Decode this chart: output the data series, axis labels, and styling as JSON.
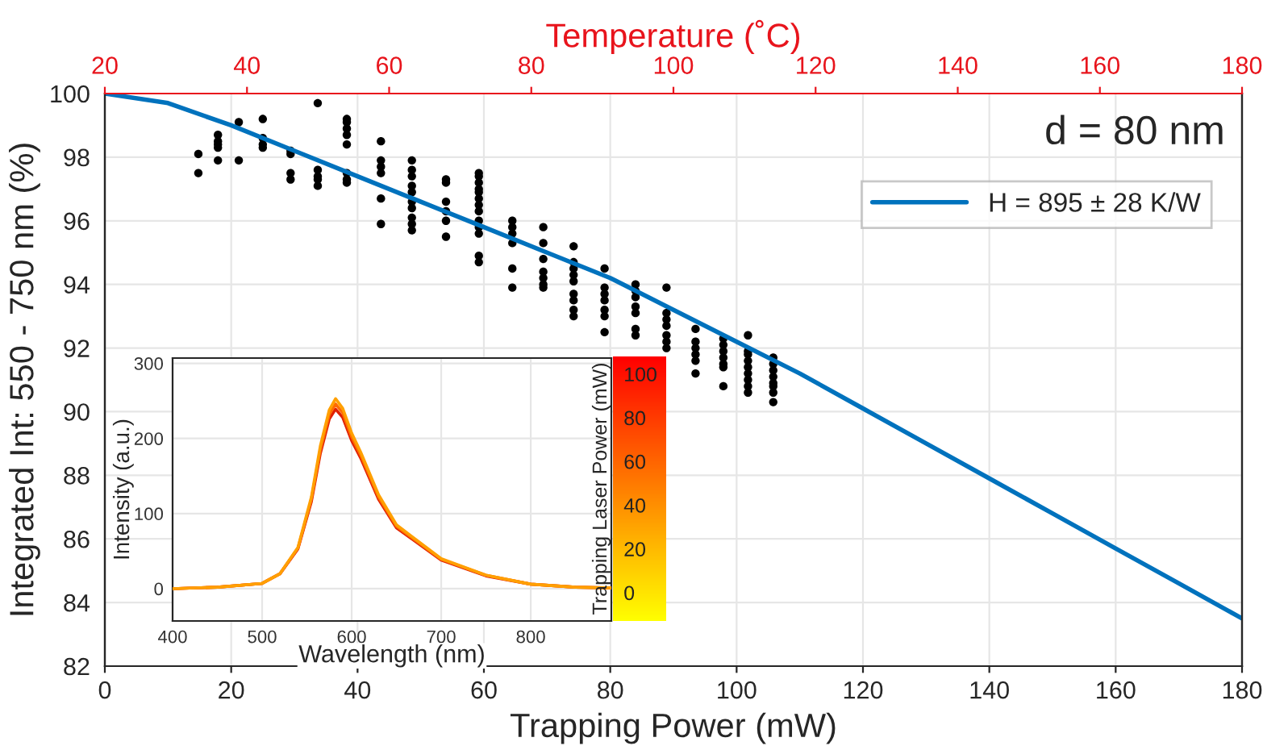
{
  "chart_data": [
    {
      "type": "scatter",
      "xlabel": "Trapping Power (mW)",
      "ylabel": "Integrated Int: 550 - 750 nm (%)",
      "x2label": "Temperature (˚C)",
      "xlim": [
        0,
        180
      ],
      "xticks": [
        0,
        20,
        40,
        60,
        80,
        100,
        120,
        140,
        160,
        180
      ],
      "ylim": [
        82,
        100
      ],
      "yticks": [
        82,
        84,
        86,
        88,
        90,
        92,
        94,
        96,
        98,
        100
      ],
      "x2lim": [
        20,
        180
      ],
      "x2ticks": [
        20,
        40,
        60,
        80,
        100,
        120,
        140,
        160,
        180
      ],
      "grid": true,
      "legend": "top right",
      "annotations": [
        "d = 80 nm"
      ],
      "series": [
        {
          "type": "scatter",
          "color": "#000000",
          "marker": "circle",
          "x": [
            14.8,
            14.8,
            17.9,
            17.9,
            17.9,
            17.9,
            17.9,
            21.2,
            21.2,
            25.0,
            25.0,
            25.0,
            25.0,
            29.4,
            29.4,
            29.4,
            29.4,
            33.7,
            33.7,
            33.7,
            33.7,
            33.7,
            38.3,
            38.3,
            38.3,
            38.3,
            38.3,
            38.3,
            38.3,
            38.3,
            43.7,
            43.7,
            43.7,
            43.7,
            43.7,
            43.7,
            48.6,
            48.6,
            48.6,
            48.6,
            48.6,
            48.6,
            48.6,
            48.6,
            48.6,
            48.6,
            54.0,
            54.0,
            54.0,
            54.0,
            54.0,
            54.0,
            59.2,
            59.2,
            59.2,
            59.2,
            59.2,
            59.2,
            59.2,
            59.2,
            59.2,
            59.2,
            59.2,
            59.2,
            59.2,
            64.5,
            64.5,
            64.5,
            64.5,
            64.5,
            64.5,
            69.4,
            69.4,
            69.4,
            69.4,
            69.4,
            69.4,
            69.4,
            74.2,
            74.2,
            74.2,
            74.2,
            74.2,
            74.2,
            74.2,
            74.2,
            74.2,
            79.1,
            79.1,
            79.1,
            79.1,
            79.1,
            79.1,
            79.1,
            84.0,
            84.0,
            84.0,
            84.0,
            84.0,
            84.0,
            84.0,
            88.9,
            88.9,
            88.9,
            88.9,
            88.9,
            88.9,
            88.9,
            93.5,
            93.5,
            93.5,
            93.5,
            93.5,
            93.5,
            97.9,
            97.9,
            97.9,
            97.9,
            97.9,
            97.9,
            97.9,
            101.8,
            101.8,
            101.8,
            101.8,
            101.8,
            101.8,
            101.8,
            101.8,
            101.8,
            105.8,
            105.8,
            105.8,
            105.8,
            105.8,
            105.8,
            105.8,
            105.8
          ],
          "values": [
            98.1,
            97.5,
            98.7,
            98.5,
            98.4,
            98.3,
            97.9,
            99.1,
            97.9,
            99.2,
            98.6,
            98.4,
            98.3,
            98.2,
            98.1,
            97.5,
            97.3,
            99.7,
            97.6,
            97.4,
            97.3,
            97.1,
            99.2,
            99.1,
            98.9,
            98.7,
            98.4,
            97.5,
            97.3,
            97.2,
            98.5,
            97.9,
            97.7,
            97.5,
            96.7,
            95.9,
            97.9,
            97.6,
            97.4,
            97.1,
            96.9,
            96.6,
            96.4,
            96.1,
            95.9,
            95.7,
            97.3,
            97.2,
            96.6,
            96.3,
            96.0,
            95.5,
            97.5,
            97.4,
            97.2,
            97.0,
            96.9,
            96.7,
            96.5,
            96.3,
            96.0,
            95.8,
            95.6,
            94.9,
            94.7,
            96.0,
            95.8,
            95.6,
            95.3,
            94.5,
            93.9,
            95.8,
            95.3,
            94.8,
            94.4,
            94.2,
            94.0,
            93.9,
            95.2,
            94.7,
            94.5,
            94.3,
            94.1,
            93.7,
            93.5,
            93.2,
            93.0,
            94.5,
            93.9,
            93.7,
            93.5,
            93.2,
            93.0,
            92.5,
            94.0,
            93.8,
            93.6,
            93.3,
            93.1,
            92.6,
            92.4,
            93.9,
            93.1,
            92.9,
            92.7,
            92.4,
            92.2,
            92.0,
            92.6,
            92.2,
            92.0,
            91.8,
            91.6,
            91.2,
            92.3,
            92.1,
            91.9,
            91.7,
            91.5,
            91.4,
            90.8,
            92.4,
            91.9,
            91.8,
            91.6,
            91.4,
            91.2,
            91.0,
            90.8,
            90.6,
            91.7,
            91.5,
            91.3,
            91.1,
            90.9,
            90.8,
            90.6,
            90.3
          ]
        },
        {
          "type": "line",
          "name": "H = 895 ± 28 K/W",
          "color": "#0072bd",
          "line_style": "solid",
          "x": [
            0,
            10,
            20,
            30,
            40,
            50,
            60,
            70,
            80,
            90,
            100,
            110,
            120,
            130,
            140,
            150,
            160,
            170,
            180
          ],
          "values": [
            100,
            99.7,
            99.0,
            98.2,
            97.4,
            96.6,
            95.8,
            95.0,
            94.2,
            93.2,
            92.2,
            91.2,
            90.1,
            89.0,
            87.9,
            86.8,
            85.7,
            84.6,
            83.5
          ]
        }
      ]
    },
    {
      "type": "line",
      "xlabel": "Wavelength (nm)",
      "ylabel": "Intensity (a.u.)",
      "xlim": [
        400,
        890
      ],
      "xticks": [
        400,
        500,
        600,
        700,
        800
      ],
      "ylim": [
        -43,
        307
      ],
      "yticks": [
        0,
        100,
        200,
        300
      ],
      "grid": true,
      "clabel": "Trapping Laser Power (mW)",
      "clim": [
        -12,
        109
      ],
      "cticks": [
        0,
        20,
        40,
        60,
        80,
        100
      ],
      "x": [
        400,
        450,
        500,
        520,
        540,
        555,
        565,
        575,
        582,
        590,
        600,
        610,
        630,
        650,
        700,
        750,
        800,
        850,
        890
      ],
      "series": [
        {
          "color": "#ffa000",
          "values": [
            0,
            2,
            7,
            20,
            55,
            122,
            190,
            238,
            253,
            240,
            207,
            182,
            125,
            85,
            40,
            18,
            6,
            2,
            1
          ]
        },
        {
          "color": "#ff6a00",
          "values": [
            0,
            2,
            7,
            20,
            54,
            119,
            185,
            232,
            246,
            234,
            202,
            178,
            122,
            83,
            39,
            18,
            6,
            2,
            1
          ]
        },
        {
          "color": "#e02000",
          "values": [
            0,
            2,
            7,
            20,
            53,
            116,
            180,
            226,
            239,
            228,
            197,
            174,
            119,
            81,
            38,
            17,
            6,
            2,
            1
          ]
        }
      ]
    }
  ]
}
